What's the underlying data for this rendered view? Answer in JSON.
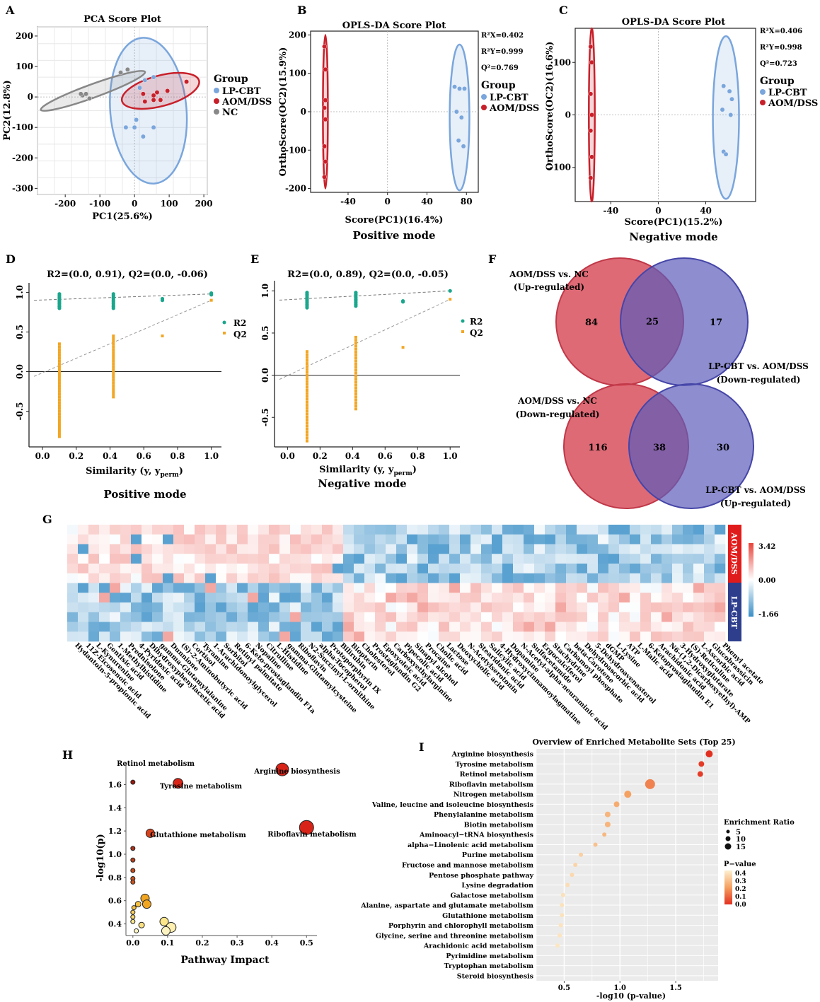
{
  "panel_letters": [
    "A",
    "B",
    "C",
    "D",
    "E",
    "F",
    "G",
    "H",
    "I"
  ],
  "colors": {
    "lpcbt": "#7aa6dc",
    "aom": "#c8202a",
    "nc": "#888888",
    "r2": "#1aa68c",
    "q2": "#f2a623",
    "venn_red": "#d8505e",
    "venn_blue": "#5d5dbb",
    "heat_high": "#e8443b",
    "heat_low": "#3a8fc7",
    "bar_aom": "#e01b1b",
    "bar_lp": "#2e3e8c"
  },
  "chart_data": [
    {
      "id": "A",
      "type": "scatter",
      "title": "PCA Score Plot",
      "xlabel": "PC1(25.6%)",
      "ylabel": "PC2(12.8%)",
      "xlim": [
        -280,
        210
      ],
      "ylim": [
        -320,
        230
      ],
      "xticks": [
        "-200",
        "-100",
        "0",
        "100",
        "200"
      ],
      "xtick_values": [
        -200,
        -100,
        0,
        100,
        200
      ],
      "yticks": [
        "200",
        "100",
        "0",
        "-100",
        "-200",
        "-300"
      ],
      "ytick_values": [
        200,
        100,
        0,
        -100,
        -200,
        -300
      ],
      "legend_title": "Group",
      "legend": [
        "LP-CBT",
        "AOM/DSS",
        "NC"
      ],
      "series": [
        {
          "name": "LP-CBT",
          "x": [
            30,
            55,
            15,
            -25,
            0,
            25,
            5,
            55
          ],
          "y": [
            55,
            65,
            30,
            -100,
            -100,
            -130,
            -75,
            -100
          ]
        },
        {
          "name": "AOM/DSS",
          "x": [
            25,
            65,
            55,
            75,
            95,
            150,
            30,
            55
          ],
          "y": [
            10,
            15,
            -10,
            -10,
            20,
            50,
            -15,
            5
          ]
        },
        {
          "name": "NC",
          "x": [
            -150,
            -140,
            -130,
            -155,
            -40,
            -20
          ],
          "y": [
            5,
            10,
            -5,
            10,
            80,
            90
          ]
        }
      ],
      "ellipses": [
        {
          "group": "LP-CBT",
          "cx": 40,
          "cy": -45,
          "rx": 110,
          "ry": 240,
          "angle": -5
        },
        {
          "group": "AOM/DSS",
          "cx": 75,
          "cy": 20,
          "rx": 115,
          "ry": 50,
          "angle": -15
        },
        {
          "group": "NC",
          "cx": -120,
          "cy": 20,
          "rx": 160,
          "ry": 22,
          "angle": -20
        }
      ]
    },
    {
      "id": "B",
      "type": "scatter",
      "title": "OPLS-DA Score Plot",
      "subtitle": "Positive mode",
      "xlabel": "Score(PC1)(16.4%)",
      "ylabel": "OrthoScore(OC2)(15.9%)",
      "xlim": [
        -78,
        92
      ],
      "ylim": [
        -210,
        210
      ],
      "xticks": [
        "-40",
        "0",
        "40",
        "80"
      ],
      "xtick_values": [
        -40,
        0,
        40,
        80
      ],
      "yticks": [
        "200",
        "100",
        "0",
        "-100",
        "-200"
      ],
      "ytick_values": [
        200,
        100,
        0,
        -100,
        -200
      ],
      "stats": [
        "R²X=0.402",
        "R²Y=0.999",
        "Q²=0.769"
      ],
      "legend_title": "Group",
      "legend": [
        "LP-CBT",
        "AOM/DSS"
      ],
      "series": [
        {
          "name": "LP-CBT",
          "x": [
            68,
            73,
            78,
            70,
            75,
            72,
            77
          ],
          "y": [
            65,
            60,
            60,
            0,
            -15,
            -75,
            -90
          ]
        },
        {
          "name": "AOM/DSS",
          "x": [
            -64,
            -63,
            -63,
            -64,
            -63,
            -64,
            -63,
            -64
          ],
          "y": [
            170,
            110,
            30,
            10,
            -20,
            -90,
            -130,
            -170
          ]
        }
      ],
      "ellipses": [
        {
          "group": "LP-CBT",
          "cx": 73,
          "cy": -15,
          "rx": 10,
          "ry": 190,
          "angle": 0
        },
        {
          "group": "AOM/DSS",
          "cx": -63,
          "cy": 0,
          "rx": 2.5,
          "ry": 200,
          "angle": 0
        }
      ]
    },
    {
      "id": "C",
      "type": "scatter",
      "title": "OPLS-DA Score Plot",
      "subtitle": "Negative mode",
      "xlabel": "Score(PC1)(15.2%)",
      "ylabel": "OrthoScore(OC2)(16.6%)",
      "xlim": [
        -70,
        82
      ],
      "ylim": [
        -165,
        165
      ],
      "xticks": [
        "-40",
        "0",
        "40"
      ],
      "xtick_values": [
        -40,
        0,
        40
      ],
      "yticks": [
        "100",
        "0",
        "-100"
      ],
      "ytick_values": [
        100,
        0,
        -100
      ],
      "stats": [
        "R²X=0.406",
        "R²Y=0.998",
        "Q²=0.723"
      ],
      "legend_title": "Group",
      "legend": [
        "LP-CBT",
        "AOM/DSS"
      ],
      "series": [
        {
          "name": "LP-CBT",
          "x": [
            55,
            60,
            62,
            54,
            61,
            55,
            57
          ],
          "y": [
            55,
            45,
            30,
            10,
            0,
            -70,
            -75
          ]
        },
        {
          "name": "AOM/DSS",
          "x": [
            -57,
            -56,
            -57,
            -56,
            -57,
            -56,
            -57
          ],
          "y": [
            130,
            100,
            40,
            0,
            -30,
            -80,
            -120
          ]
        }
      ],
      "ellipses": [
        {
          "group": "LP-CBT",
          "cx": 57,
          "cy": -5,
          "rx": 11,
          "ry": 155,
          "angle": 0
        },
        {
          "group": "AOM/DSS",
          "cx": -56,
          "cy": 0,
          "rx": 2.5,
          "ry": 165,
          "angle": 0
        }
      ]
    },
    {
      "id": "D",
      "type": "scatter",
      "title": "R2=(0.0, 0.91), Q2=(0.0, -0.06)",
      "subtitle": "Positive mode",
      "xlabel": "Similarity (y, y",
      "xlabel_sub": "perm",
      "xlabel_end": ")",
      "xlim": [
        -0.08,
        1.06
      ],
      "ylim": [
        -0.95,
        1.12
      ],
      "xticks": [
        "0.0",
        "0.2",
        "0.4",
        "0.6",
        "0.8",
        "1.0"
      ],
      "xtick_values": [
        0,
        0.2,
        0.4,
        0.6,
        0.8,
        1.0
      ],
      "yticks": [
        "1.0",
        "0.5",
        "0.0",
        "-0.5"
      ],
      "ytick_values": [
        1.0,
        0.5,
        0,
        -0.5
      ],
      "legend": [
        "R2",
        "Q2"
      ],
      "r2_line": [
        [
          -0.05,
          0.9
        ],
        [
          1.0,
          0.98
        ]
      ],
      "q2_line": [
        [
          -0.05,
          -0.06
        ],
        [
          1.0,
          0.9
        ]
      ],
      "r2_points": {
        "x": [
          0.1,
          0.42,
          0.71,
          1.0
        ],
        "spread": [
          [
            0.8,
            0.98
          ],
          [
            0.8,
            0.98
          ],
          [
            0.9,
            0.92
          ],
          [
            0.97,
            0.99
          ]
        ]
      },
      "q2_points": {
        "x": [
          0.1,
          0.42,
          0.71,
          1.0
        ],
        "spread": [
          [
            -0.82,
            0.35
          ],
          [
            -0.32,
            0.45
          ],
          [
            0.45,
            0.45
          ],
          [
            0.9,
            0.9
          ]
        ]
      }
    },
    {
      "id": "E",
      "type": "scatter",
      "title": "R2=(0.0, 0.89), Q2=(0.0, -0.05)",
      "subtitle": "Negative mode",
      "xlabel": "Similarity (y, y",
      "xlabel_sub": "perm",
      "xlabel_end": ")",
      "xlim": [
        -0.08,
        1.06
      ],
      "ylim": [
        -0.85,
        1.12
      ],
      "xticks": [
        "0.0",
        "0.2",
        "0.4",
        "0.6",
        "0.8",
        "1.0"
      ],
      "xtick_values": [
        0,
        0.2,
        0.4,
        0.6,
        0.8,
        1.0
      ],
      "yticks": [
        "1.0",
        "0.5",
        "0.0",
        "-0.5"
      ],
      "ytick_values": [
        1.0,
        0.5,
        0,
        -0.5
      ],
      "legend": [
        "R2",
        "Q2"
      ],
      "r2_line": [
        [
          -0.05,
          0.89
        ],
        [
          1.0,
          1.0
        ]
      ],
      "q2_line": [
        [
          -0.05,
          -0.05
        ],
        [
          1.0,
          0.9
        ]
      ],
      "r2_points": {
        "x": [
          0.12,
          0.42,
          0.71,
          1.0
        ],
        "spread": [
          [
            0.8,
            0.98
          ],
          [
            0.82,
            0.98
          ],
          [
            0.87,
            0.88
          ],
          [
            1.0,
            1.0
          ]
        ]
      },
      "q2_points": {
        "x": [
          0.12,
          0.42,
          0.71,
          1.0
        ],
        "spread": [
          [
            -0.78,
            0.28
          ],
          [
            -0.4,
            0.45
          ],
          [
            0.33,
            0.33
          ],
          [
            0.9,
            0.9
          ]
        ]
      }
    },
    {
      "id": "F",
      "type": "venn",
      "diagrams": [
        {
          "left_label": [
            "AOM/DSS vs. NC",
            "(Up-regulated)"
          ],
          "right_label": [
            "LP-CBT vs. AOM/DSS",
            "(Down-regulated)"
          ],
          "left": "84",
          "center": "25",
          "right": "17"
        },
        {
          "left_label": [
            "AOM/DSS vs. NC",
            "(Down-regulated)"
          ],
          "right_label": [
            "LP-CBT vs. AOM/DSS",
            "(Up-regulated)"
          ],
          "left": "116",
          "center": "38",
          "right": "30"
        }
      ]
    },
    {
      "id": "G",
      "type": "heatmap",
      "row_groups": [
        "AOM/DSS",
        "LP-CBT"
      ],
      "scale": {
        "max": "3.42",
        "mid": "0.00",
        "min": "-1.66"
      },
      "n_rows": 12,
      "n_cols": 62,
      "columns": [
        "Hydantoin-5-propionic acid",
        "11Z-Eicosenoic acid",
        "L-Kynurenine",
        "Gentisic acid",
        "1-Methylhistidine",
        "Prednisolone",
        "4-Pyridoxic acid",
        "Dihydroxyphenylacetic acid",
        "gamma-Glutamylalanine",
        "Dunnione",
        "(S)-2-Aminobutyric acid",
        "Cortisol",
        "Tyramine",
        "1-Arachidonoylglycerol",
        "Sorbitol",
        "Retinyl palmitate",
        "6-Keto-prostaglandin F1a",
        "Nopaline",
        "Citrulline",
        "L-Histidine",
        "gamma-Glutamylcysteine",
        "Riboflavin",
        "N2-Succinyl-L-ornithine",
        "alpha-Tocopherol",
        "Protoporphyrin IX",
        "Bilirubin",
        "Biopterin",
        "Cholesterol",
        "Prostaglandin G2",
        "Epoxyoleic acid",
        "Carboxyethylarginine",
        "Pipecolic acid",
        "Sinapyl alcohol",
        "Procaine",
        "Cholic acid",
        "Lactose",
        "Deoxycholic acid",
        "N-Acetylserotonin",
        "Stearidonic acid",
        "Salicylic acid",
        "4-Hydroxycinnamoylagmatine",
        "Dopamine",
        "N-Acetyl-alpha-neuraminic acid",
        "Sulfacetamide",
        "Ergocalciferol",
        "Stachydrine",
        "Carbamoyl phosphate",
        "beta-Carotene",
        "Dehydroascorbic acid",
        "5-Dehydroavenasterol",
        "dGMP",
        "L-Lysine",
        "ATP",
        "L-Malic acid",
        "6-Ketoprostaglandin E1",
        "Arachidonic acid",
        "N6-(1,2-Dicarboxyethyl)-AMP",
        "3-Hydroxyglutarate",
        "(S)-Reticuline",
        "L-Ascorbic acid",
        "Glucobrassicin",
        "Phenyl acetate"
      ]
    },
    {
      "id": "H",
      "type": "scatter",
      "title": "",
      "xlabel": "Pathway Impact",
      "ylabel": "-log10(p)",
      "xlim": [
        -0.02,
        0.53
      ],
      "ylim": [
        0.3,
        1.7
      ],
      "xticks": [
        "0.0",
        "0.1",
        "0.2",
        "0.3",
        "0.4",
        "0.5"
      ],
      "xtick_values": [
        0,
        0.1,
        0.2,
        0.3,
        0.4,
        0.5
      ],
      "yticks": [
        "1.6",
        "1.4",
        "1.2",
        "1.0",
        "0.8",
        "0.6",
        "0.4"
      ],
      "ytick_values": [
        1.6,
        1.4,
        1.2,
        1.0,
        0.8,
        0.6,
        0.4
      ],
      "points": [
        {
          "x": 0.0,
          "y": 1.62,
          "r": 3,
          "c": "#9b1a10"
        },
        {
          "x": 0.13,
          "y": 1.61,
          "r": 7,
          "c": "#d82418"
        },
        {
          "x": 0.43,
          "y": 1.73,
          "r": 9,
          "c": "#d82418"
        },
        {
          "x": 0.05,
          "y": 1.18,
          "r": 6,
          "c": "#d8421c"
        },
        {
          "x": 0.5,
          "y": 1.23,
          "r": 10,
          "c": "#d82418"
        },
        {
          "x": 0.0,
          "y": 1.05,
          "r": 3,
          "c": "#a8321a"
        },
        {
          "x": 0.0,
          "y": 0.95,
          "r": 3,
          "c": "#b8421e"
        },
        {
          "x": 0.0,
          "y": 0.86,
          "r": 3,
          "c": "#c04a1e"
        },
        {
          "x": 0.0,
          "y": 0.79,
          "r": 3,
          "c": "#c85420"
        },
        {
          "x": 0.0,
          "y": 0.76,
          "r": 3,
          "c": "#c85420"
        },
        {
          "x": 0.035,
          "y": 0.62,
          "r": 6,
          "c": "#f2a620"
        },
        {
          "x": 0.04,
          "y": 0.57,
          "r": 6,
          "c": "#f2a620"
        },
        {
          "x": 0.015,
          "y": 0.57,
          "r": 4,
          "c": "#f5c040"
        },
        {
          "x": 0.003,
          "y": 0.54,
          "r": 3,
          "c": "#f5c040"
        },
        {
          "x": 0.0,
          "y": 0.5,
          "r": 3,
          "c": "#f8d060"
        },
        {
          "x": 0.0,
          "y": 0.46,
          "r": 3,
          "c": "#f8d870"
        },
        {
          "x": 0.025,
          "y": 0.39,
          "r": 4,
          "c": "#fae080"
        },
        {
          "x": 0.0,
          "y": 0.42,
          "r": 3,
          "c": "#fbe88c"
        },
        {
          "x": 0.09,
          "y": 0.42,
          "r": 6,
          "c": "#fce68a"
        },
        {
          "x": 0.11,
          "y": 0.37,
          "r": 7,
          "c": "#fdf0b0"
        },
        {
          "x": 0.095,
          "y": 0.34,
          "r": 6,
          "c": "#fdf3c0"
        },
        {
          "x": 0.01,
          "y": 0.34,
          "r": 3,
          "c": "#fdf3c0"
        }
      ],
      "annotations": [
        "Retinol metabolism",
        "Tyrosine metabolism",
        "Arginine biosynthesis",
        "Glutathione metabolism",
        "Riboflavin metabolism"
      ]
    },
    {
      "id": "I",
      "type": "scatter",
      "title": "Overview of Enriched Metabolite Sets (Top 25)",
      "xlabel": "-log10 (p-value)",
      "xlim": [
        0.25,
        1.88
      ],
      "xticks": [
        "0.5",
        "1.0",
        "1.5"
      ],
      "xtick_values": [
        0.5,
        1.0,
        1.5
      ],
      "categories": [
        "Arginine biosynthesis",
        "Tyrosine metabolism",
        "Retinol metabolism",
        "Riboflavin metabolism",
        "Nitrogen metabolism",
        "Valine, leucine and isoleucine biosynthesis",
        "Phenylalanine metabolism",
        "Biotin metabolism",
        "Aminoacyl−tRNA biosynthesis",
        "alpha−Linolenic acid metabolism",
        "Purine metabolism",
        "Fructose and mannose metabolism",
        "Pentose phosphate pathway",
        "Lysine degradation",
        "Galactose metabolism",
        "Alanine, aspartate and glutamate metabolism",
        "Glutathione metabolism",
        "Porphyrin and chlorophyll metabolism",
        "Glycine, serine and threonine metabolism",
        "Arachidonic acid metabolism",
        "Pyrimidine metabolism",
        "Tryptophan metabolism",
        "Steroid biosynthesis"
      ],
      "values": [
        1.8,
        1.73,
        1.72,
        1.27,
        1.07,
        0.97,
        0.89,
        0.89,
        0.86,
        0.78,
        0.65,
        0.6,
        0.57,
        0.53,
        0.49,
        0.48,
        0.48,
        0.47,
        0.46,
        0.44,
        0.0,
        0.0,
        0.0
      ],
      "sizes": [
        5,
        4,
        4,
        7,
        5,
        4,
        4,
        4,
        3,
        3,
        3,
        3,
        3,
        3,
        3,
        3,
        3,
        3,
        3,
        3,
        0,
        0,
        0
      ],
      "legend_size_title": "Enrichment Ratio",
      "legend_sizes": [
        "5",
        "10",
        "15"
      ],
      "legend_color_title": "P−value",
      "legend_colors": [
        "0.4",
        "0.3",
        "0.2",
        "0.1",
        "0.0"
      ]
    }
  ]
}
